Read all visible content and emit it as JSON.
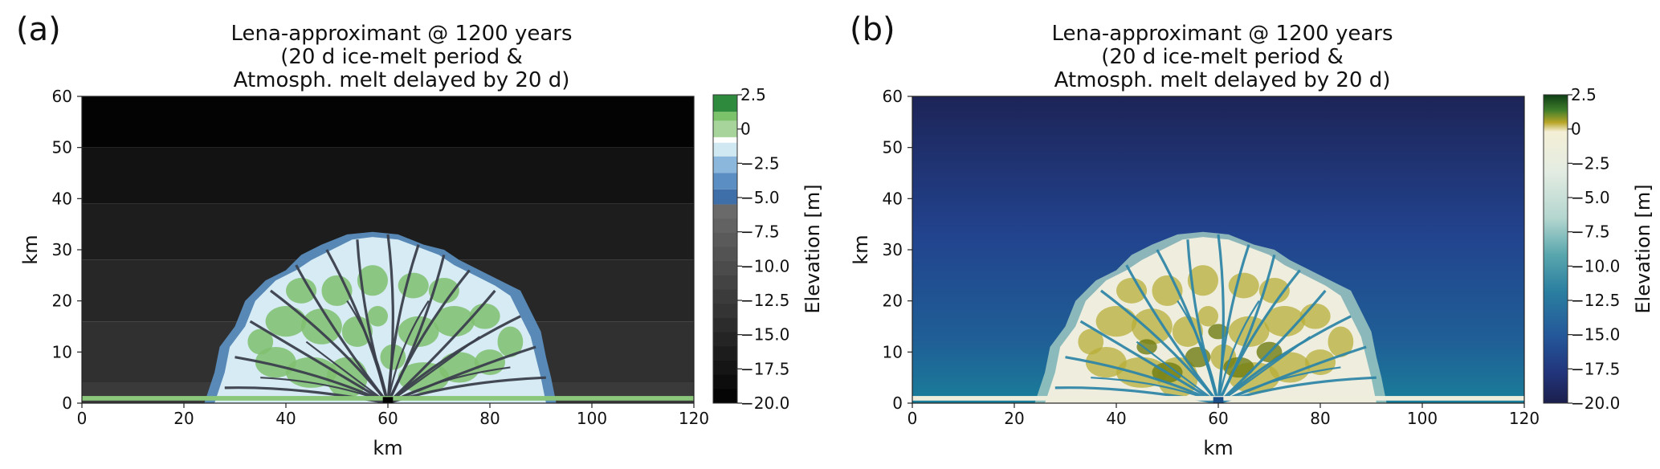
{
  "panels": [
    {
      "letter": "(a)",
      "title_lines": [
        "Lena-approximant @ 1200 years",
        "(20 d ice-melt period &",
        "Atmosph. melt delayed by 20 d)"
      ],
      "colormap": "discrete green-blue-greys",
      "colors": {
        "positive": "#2e8b3e",
        "zero": "#a7d49a",
        "shallow": "#c6e2ee",
        "mid_blue": "#5b8fc4",
        "channel": "#3a3f4a",
        "background_top": "#050505",
        "background_bottom": "#3a3a3a"
      }
    },
    {
      "letter": "(b)",
      "title_lines": [
        "Lena-approximant @ 1200 years",
        "(20 d ice-melt period &",
        "Atmosph. melt delayed by 20 d)"
      ],
      "colormap": "continuous delta (navy-teal-cream-olive-green)",
      "colors": {
        "positive": "#1f4d1f",
        "zero": "#f3efdc",
        "channel": "#2b7fa0",
        "background_top": "#1c2a5c",
        "background_bottom": "#1f6d8e",
        "olive": "#8a8a14"
      }
    }
  ],
  "chart_data": [
    {
      "type": "heatmap",
      "title": "Lena-approximant @ 1200 years (20 d ice-melt period & Atmosph. melt delayed by 20 d)",
      "xlabel": "km",
      "ylabel": "km",
      "xlim": [
        0,
        120
      ],
      "ylim": [
        0,
        60
      ],
      "xticks": [
        0,
        20,
        40,
        60,
        80,
        100,
        120
      ],
      "yticks": [
        0,
        10,
        20,
        30,
        40,
        50,
        60
      ],
      "colorbar": {
        "label": "Elevation [m]",
        "range": [
          -20.0,
          2.5
        ],
        "ticks": [
          "2.5",
          "0",
          "−2.5",
          "−5.0",
          "−7.5",
          "−10.0",
          "−12.5",
          "−15.0",
          "−17.5",
          "−20.0"
        ],
        "tick_values": [
          2.5,
          0,
          -2.5,
          -5.0,
          -7.5,
          -10.0,
          -12.5,
          -15.0,
          -17.5,
          -20.0
        ],
        "style": "discrete"
      },
      "delta": {
        "apex_x_km": 60,
        "apex_y_km": 0,
        "extent_x_km": [
          26,
          92
        ],
        "max_y_km": 33
      },
      "grid": false
    },
    {
      "type": "heatmap",
      "title": "Lena-approximant @ 1200 years (20 d ice-melt period & Atmosph. melt delayed by 20 d)",
      "xlabel": "km",
      "ylabel": "km",
      "xlim": [
        0,
        120
      ],
      "ylim": [
        0,
        60
      ],
      "xticks": [
        0,
        20,
        40,
        60,
        80,
        100,
        120
      ],
      "yticks": [
        0,
        10,
        20,
        30,
        40,
        50,
        60
      ],
      "colorbar": {
        "label": "Elevation [m]",
        "range": [
          -20.0,
          2.5
        ],
        "ticks": [
          "2.5",
          "0",
          "−2.5",
          "−5.0",
          "−7.5",
          "−10.0",
          "−12.5",
          "−15.0",
          "−17.5",
          "−20.0"
        ],
        "tick_values": [
          2.5,
          0,
          -2.5,
          -5.0,
          -7.5,
          -10.0,
          -12.5,
          -15.0,
          -17.5,
          -20.0
        ],
        "style": "continuous"
      },
      "delta": {
        "apex_x_km": 60,
        "apex_y_km": 0,
        "extent_x_km": [
          26,
          92
        ],
        "max_y_km": 33
      },
      "grid": false
    }
  ]
}
